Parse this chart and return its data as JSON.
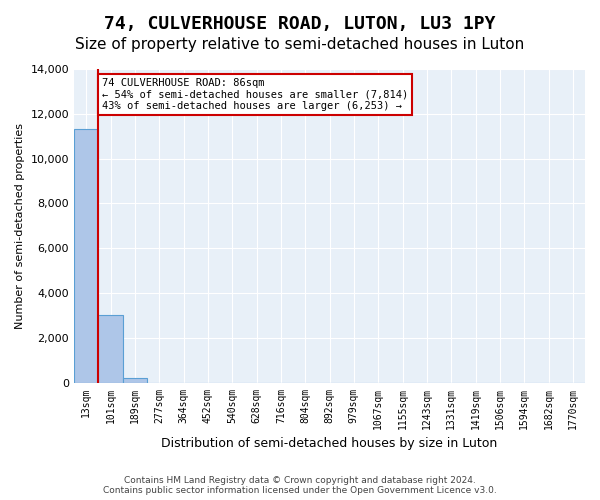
{
  "title": "74, CULVERHOUSE ROAD, LUTON, LU3 1PY",
  "subtitle": "Size of property relative to semi-detached houses in Luton",
  "xlabel": "Distribution of semi-detached houses by size in Luton",
  "ylabel": "Number of semi-detached properties",
  "footer_line1": "Contains HM Land Registry data © Crown copyright and database right 2024.",
  "footer_line2": "Contains public sector information licensed under the Open Government Licence v3.0.",
  "bin_labels": [
    "13sqm",
    "101sqm",
    "189sqm",
    "277sqm",
    "364sqm",
    "452sqm",
    "540sqm",
    "628sqm",
    "716sqm",
    "804sqm",
    "892sqm",
    "979sqm",
    "1067sqm",
    "1155sqm",
    "1243sqm",
    "1331sqm",
    "1419sqm",
    "1506sqm",
    "1594sqm",
    "1682sqm",
    "1770sqm"
  ],
  "bar_values": [
    11300,
    3000,
    200,
    0,
    0,
    0,
    0,
    0,
    0,
    0,
    0,
    0,
    0,
    0,
    0,
    0,
    0,
    0,
    0,
    0,
    0
  ],
  "bar_color": "#aec6e8",
  "bar_edge_color": "#5a9fd4",
  "vline_color": "#cc0000",
  "vline_x": 0.5,
  "annotation_text": "74 CULVERHOUSE ROAD: 86sqm\n← 54% of semi-detached houses are smaller (7,814)\n43% of semi-detached houses are larger (6,253) →",
  "annotation_box_color": "#cc0000",
  "ylim": [
    0,
    14000
  ],
  "yticks": [
    0,
    2000,
    4000,
    6000,
    8000,
    10000,
    12000,
    14000
  ],
  "bg_color": "#e8f0f8",
  "grid_color": "#ffffff",
  "title_fontsize": 13,
  "subtitle_fontsize": 11
}
